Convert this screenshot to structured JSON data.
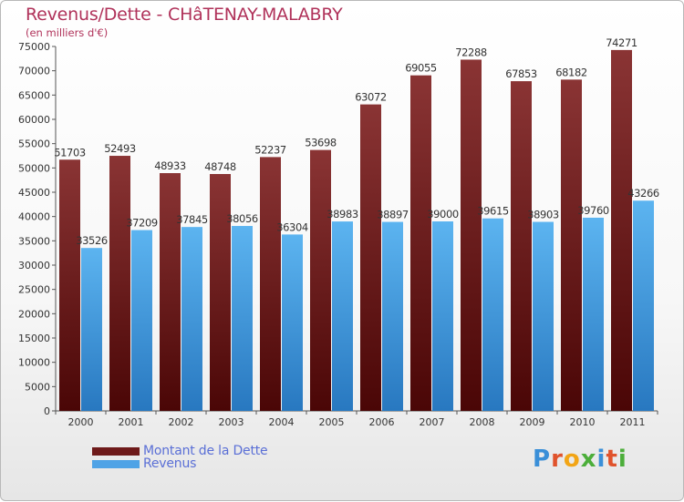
{
  "header": {
    "title": "Revenus/Dette - CHâTENAY-MALABRY",
    "subtitle": "(en milliers d'€)"
  },
  "legend": {
    "items": [
      {
        "label": "Montant de la Dette",
        "color": "#6e1a1a"
      },
      {
        "label": "Revenus",
        "color": "#4fa3e6"
      }
    ]
  },
  "logo": {
    "letters": [
      {
        "ch": "P",
        "color": "#3a8fd8"
      },
      {
        "ch": "r",
        "color": "#e0532c"
      },
      {
        "ch": "o",
        "color": "#f2a516"
      },
      {
        "ch": "x",
        "color": "#4cae3a"
      },
      {
        "ch": "i",
        "color": "#3a8fd8"
      },
      {
        "ch": "t",
        "color": "#e0532c"
      },
      {
        "ch": "i",
        "color": "#4cae3a"
      }
    ]
  },
  "chart_data": {
    "type": "bar",
    "categories": [
      "2000",
      "2001",
      "2002",
      "2003",
      "2004",
      "2005",
      "2006",
      "2007",
      "2008",
      "2009",
      "2010",
      "2011"
    ],
    "series": [
      {
        "name": "Montant de la Dette",
        "color": "#6e1a1a",
        "values": [
          51703,
          52493,
          48933,
          48748,
          52237,
          53698,
          63072,
          69055,
          72288,
          67853,
          68182,
          74271
        ]
      },
      {
        "name": "Revenus",
        "color": "#4fa3e6",
        "values": [
          33526,
          37209,
          37845,
          38056,
          36304,
          38983,
          38897,
          39000,
          39615,
          38903,
          39760,
          43266
        ]
      }
    ],
    "ylim": [
      0,
      75000
    ],
    "yticks": [
      0,
      5000,
      10000,
      15000,
      20000,
      25000,
      30000,
      35000,
      40000,
      45000,
      50000,
      55000,
      60000,
      65000,
      70000,
      75000
    ],
    "grid": false,
    "legend_position": "bottom-left"
  }
}
